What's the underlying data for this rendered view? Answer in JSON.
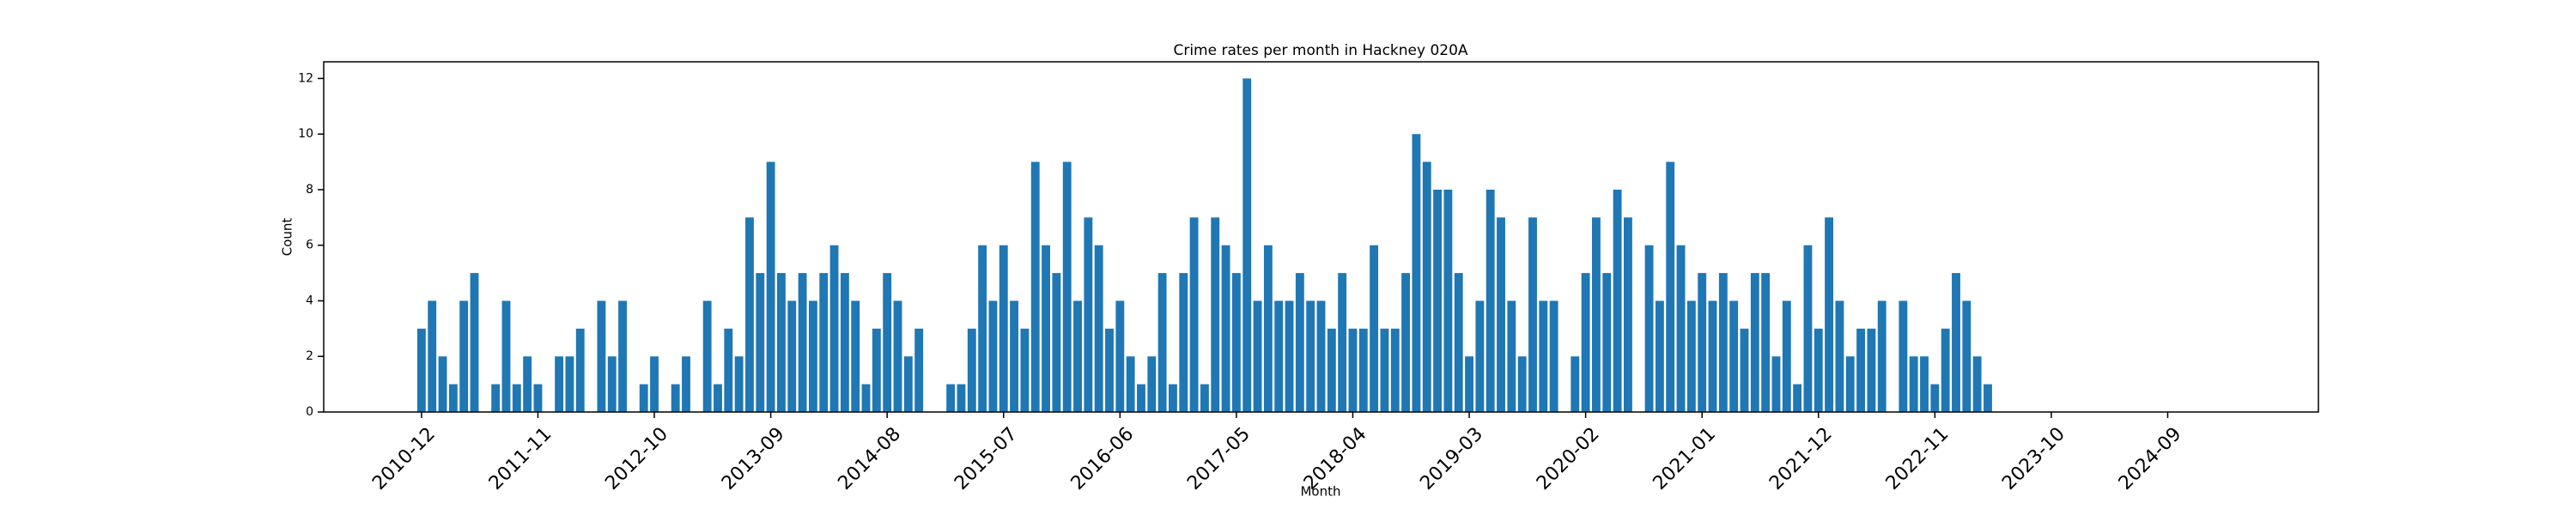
{
  "chart_data": {
    "type": "bar",
    "title": "Crime rates per month in Hackney 020A",
    "x_label": "Month",
    "y_label": "Count",
    "categories": [
      "2010-12",
      null,
      null,
      null,
      null,
      null,
      null,
      null,
      null,
      null,
      null,
      "2011-11",
      null,
      null,
      null,
      null,
      null,
      null,
      null,
      null,
      null,
      null,
      "2012-10",
      null,
      null,
      null,
      null,
      null,
      null,
      null,
      null,
      null,
      null,
      "2013-09",
      null,
      null,
      null,
      null,
      null,
      null,
      null,
      null,
      null,
      null,
      "2014-08",
      null,
      null,
      null,
      null,
      null,
      null,
      null,
      null,
      null,
      null,
      "2015-07",
      null,
      null,
      null,
      null,
      null,
      null,
      null,
      null,
      null,
      null,
      "2016-06",
      null,
      null,
      null,
      null,
      null,
      null,
      null,
      null,
      null,
      null,
      "2017-05",
      null,
      null,
      null,
      null,
      null,
      null,
      null,
      null,
      null,
      null,
      "2018-04",
      null,
      null,
      null,
      null,
      null,
      null,
      null,
      null,
      null,
      null,
      "2019-03",
      null,
      null,
      null,
      null,
      null,
      null,
      null,
      null,
      null,
      null,
      "2020-02",
      null,
      null,
      null,
      null,
      null,
      null,
      null,
      null,
      null,
      null,
      "2021-01",
      null,
      null,
      null,
      null,
      null,
      null,
      null,
      null,
      null,
      null,
      "2021-12",
      null,
      null,
      null,
      null,
      null,
      null,
      null,
      null,
      null,
      null,
      "2022-11",
      null,
      null,
      null,
      null,
      null,
      null,
      null,
      null,
      null,
      null,
      "2023-10",
      null,
      null,
      null,
      null,
      null,
      null,
      null,
      null,
      null,
      null,
      "2024-09",
      null,
      null,
      null,
      null,
      null
    ],
    "values": [
      3,
      4,
      2,
      1,
      4,
      5,
      0,
      1,
      4,
      1,
      2,
      1,
      0,
      2,
      2,
      3,
      0,
      4,
      2,
      4,
      0,
      1,
      2,
      0,
      1,
      2,
      0,
      4,
      1,
      3,
      2,
      7,
      5,
      9,
      5,
      4,
      5,
      4,
      5,
      6,
      5,
      4,
      1,
      3,
      5,
      4,
      2,
      3,
      0,
      0,
      1,
      1,
      3,
      6,
      4,
      6,
      4,
      3,
      9,
      6,
      5,
      9,
      4,
      7,
      6,
      3,
      4,
      2,
      1,
      2,
      5,
      1,
      5,
      7,
      1,
      7,
      6,
      5,
      12,
      4,
      6,
      4,
      4,
      5,
      4,
      4,
      3,
      5,
      3,
      3,
      6,
      3,
      3,
      5,
      10,
      9,
      8,
      8,
      5,
      2,
      4,
      8,
      7,
      4,
      2,
      7,
      4,
      4,
      0,
      2,
      5,
      7,
      5,
      8,
      7,
      0,
      6,
      4,
      9,
      6,
      4,
      5,
      4,
      5,
      4,
      3,
      5,
      5,
      2,
      4,
      1,
      6,
      3,
      7,
      4,
      2,
      3,
      3,
      4,
      0,
      4,
      2,
      2,
      1,
      3,
      5,
      4,
      2,
      1,
      0,
      0,
      0,
      0,
      0,
      0,
      0,
      0,
      0,
      0,
      0,
      0,
      0,
      0,
      0,
      0,
      0,
      0,
      0,
      0,
      0,
      0
    ],
    "color": "#1f77b4",
    "ylim": [
      0,
      12.6
    ],
    "yticks": [
      0,
      2,
      4,
      6,
      8,
      10,
      12
    ],
    "grid": false
  }
}
